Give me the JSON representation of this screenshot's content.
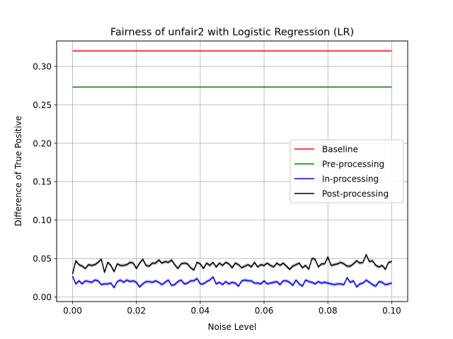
{
  "chart_data": {
    "type": "line",
    "title": "Fairness of unfair2 with Logistic Regression (LR)",
    "xlabel": "Noise Level",
    "ylabel": "Difference of True Positive",
    "xlim": [
      -0.005,
      0.105
    ],
    "ylim": [
      -0.006,
      0.333
    ],
    "xticks": [
      0.0,
      0.02,
      0.04,
      0.06,
      0.08,
      0.1
    ],
    "xtick_labels": [
      "0.00",
      "0.02",
      "0.04",
      "0.06",
      "0.08",
      "0.10"
    ],
    "yticks": [
      0.0,
      0.05,
      0.1,
      0.15,
      0.2,
      0.25,
      0.3
    ],
    "ytick_labels": [
      "0.00",
      "0.05",
      "0.10",
      "0.15",
      "0.20",
      "0.25",
      "0.30"
    ],
    "grid": true,
    "legend": "center-right",
    "x": [
      0.0,
      0.001,
      0.002,
      0.003,
      0.004,
      0.005,
      0.006,
      0.007,
      0.008,
      0.009,
      0.01,
      0.011,
      0.012,
      0.013,
      0.014,
      0.015,
      0.016,
      0.017,
      0.018,
      0.019,
      0.02,
      0.021,
      0.022,
      0.023,
      0.024,
      0.025,
      0.026,
      0.027,
      0.028,
      0.029,
      0.03,
      0.031,
      0.032,
      0.033,
      0.034,
      0.035,
      0.036,
      0.037,
      0.038,
      0.039,
      0.04,
      0.041,
      0.042,
      0.043,
      0.044,
      0.045,
      0.046,
      0.047,
      0.048,
      0.049,
      0.05,
      0.051,
      0.052,
      0.053,
      0.054,
      0.055,
      0.056,
      0.057,
      0.058,
      0.059,
      0.06,
      0.061,
      0.062,
      0.063,
      0.064,
      0.065,
      0.066,
      0.067,
      0.068,
      0.069,
      0.07,
      0.071,
      0.072,
      0.073,
      0.074,
      0.075,
      0.076,
      0.077,
      0.078,
      0.079,
      0.08,
      0.081,
      0.082,
      0.083,
      0.084,
      0.085,
      0.086,
      0.087,
      0.088,
      0.089,
      0.09,
      0.091,
      0.092,
      0.093,
      0.094,
      0.095,
      0.096,
      0.097,
      0.098,
      0.099,
      0.1
    ],
    "series": [
      {
        "name": "Baseline",
        "color": "#ff0000",
        "values": [
          0.32,
          0.32,
          0.32,
          0.32,
          0.32,
          0.32,
          0.32,
          0.32,
          0.32,
          0.32,
          0.32,
          0.32,
          0.32,
          0.32,
          0.32,
          0.32,
          0.32,
          0.32,
          0.32,
          0.32,
          0.32,
          0.32,
          0.32,
          0.32,
          0.32,
          0.32,
          0.32,
          0.32,
          0.32,
          0.32,
          0.32,
          0.32,
          0.32,
          0.32,
          0.32,
          0.32,
          0.32,
          0.32,
          0.32,
          0.32,
          0.32,
          0.32,
          0.32,
          0.32,
          0.32,
          0.32,
          0.32,
          0.32,
          0.32,
          0.32,
          0.32,
          0.32,
          0.32,
          0.32,
          0.32,
          0.32,
          0.32,
          0.32,
          0.32,
          0.32,
          0.32,
          0.32,
          0.32,
          0.32,
          0.32,
          0.32,
          0.32,
          0.32,
          0.32,
          0.32,
          0.32,
          0.32,
          0.32,
          0.32,
          0.32,
          0.32,
          0.32,
          0.32,
          0.32,
          0.32,
          0.32,
          0.32,
          0.32,
          0.32,
          0.32,
          0.32,
          0.32,
          0.32,
          0.32,
          0.32,
          0.32,
          0.32,
          0.32,
          0.32,
          0.32,
          0.32,
          0.32,
          0.32,
          0.32,
          0.32,
          0.32
        ]
      },
      {
        "name": "Pre-processing",
        "color": "#008000",
        "values": [
          0.273,
          0.273,
          0.273,
          0.273,
          0.273,
          0.273,
          0.273,
          0.273,
          0.273,
          0.273,
          0.273,
          0.273,
          0.273,
          0.273,
          0.273,
          0.273,
          0.273,
          0.273,
          0.273,
          0.273,
          0.273,
          0.273,
          0.273,
          0.273,
          0.273,
          0.273,
          0.273,
          0.273,
          0.273,
          0.273,
          0.273,
          0.273,
          0.273,
          0.273,
          0.273,
          0.273,
          0.273,
          0.273,
          0.273,
          0.273,
          0.273,
          0.273,
          0.273,
          0.273,
          0.273,
          0.273,
          0.273,
          0.273,
          0.273,
          0.273,
          0.273,
          0.273,
          0.273,
          0.273,
          0.273,
          0.273,
          0.273,
          0.273,
          0.273,
          0.273,
          0.273,
          0.273,
          0.273,
          0.273,
          0.273,
          0.273,
          0.273,
          0.273,
          0.273,
          0.273,
          0.273,
          0.273,
          0.273,
          0.273,
          0.273,
          0.273,
          0.273,
          0.273,
          0.273,
          0.273,
          0.273,
          0.273,
          0.273,
          0.273,
          0.273,
          0.273,
          0.273,
          0.273,
          0.273,
          0.273,
          0.273,
          0.273,
          0.273,
          0.273,
          0.273,
          0.273,
          0.273,
          0.273,
          0.273,
          0.273,
          0.273
        ]
      },
      {
        "name": "In-processing",
        "color": "#0000ff",
        "values": [
          0.027,
          0.017,
          0.021,
          0.017,
          0.021,
          0.02,
          0.019,
          0.022,
          0.021,
          0.016,
          0.017,
          0.017,
          0.018,
          0.012,
          0.02,
          0.022,
          0.019,
          0.022,
          0.02,
          0.021,
          0.019,
          0.013,
          0.017,
          0.02,
          0.02,
          0.019,
          0.021,
          0.019,
          0.016,
          0.019,
          0.022,
          0.015,
          0.016,
          0.02,
          0.022,
          0.017,
          0.018,
          0.021,
          0.021,
          0.024,
          0.017,
          0.017,
          0.02,
          0.022,
          0.026,
          0.017,
          0.019,
          0.016,
          0.02,
          0.017,
          0.019,
          0.018,
          0.014,
          0.021,
          0.022,
          0.021,
          0.021,
          0.018,
          0.018,
          0.017,
          0.021,
          0.017,
          0.018,
          0.019,
          0.02,
          0.016,
          0.021,
          0.021,
          0.019,
          0.015,
          0.022,
          0.017,
          0.014,
          0.022,
          0.02,
          0.019,
          0.017,
          0.02,
          0.018,
          0.019,
          0.018,
          0.017,
          0.016,
          0.017,
          0.017,
          0.016,
          0.025,
          0.019,
          0.021,
          0.013,
          0.017,
          0.018,
          0.022,
          0.019,
          0.016,
          0.014,
          0.02,
          0.019,
          0.016,
          0.017,
          0.018
        ]
      },
      {
        "name": "Post-processing",
        "color": "#000000",
        "values": [
          0.03,
          0.047,
          0.042,
          0.04,
          0.037,
          0.042,
          0.041,
          0.042,
          0.045,
          0.049,
          0.032,
          0.045,
          0.041,
          0.033,
          0.043,
          0.041,
          0.041,
          0.042,
          0.045,
          0.044,
          0.037,
          0.044,
          0.049,
          0.041,
          0.04,
          0.044,
          0.044,
          0.048,
          0.044,
          0.046,
          0.045,
          0.048,
          0.042,
          0.037,
          0.043,
          0.044,
          0.043,
          0.038,
          0.035,
          0.045,
          0.043,
          0.037,
          0.044,
          0.041,
          0.045,
          0.039,
          0.044,
          0.041,
          0.045,
          0.043,
          0.038,
          0.044,
          0.042,
          0.038,
          0.04,
          0.042,
          0.039,
          0.045,
          0.039,
          0.042,
          0.041,
          0.044,
          0.041,
          0.039,
          0.044,
          0.041,
          0.044,
          0.04,
          0.036,
          0.04,
          0.042,
          0.044,
          0.038,
          0.041,
          0.036,
          0.05,
          0.049,
          0.039,
          0.043,
          0.043,
          0.052,
          0.041,
          0.042,
          0.043,
          0.045,
          0.043,
          0.04,
          0.04,
          0.043,
          0.047,
          0.044,
          0.045,
          0.055,
          0.046,
          0.047,
          0.041,
          0.039,
          0.041,
          0.036,
          0.045,
          0.046
        ]
      }
    ]
  }
}
